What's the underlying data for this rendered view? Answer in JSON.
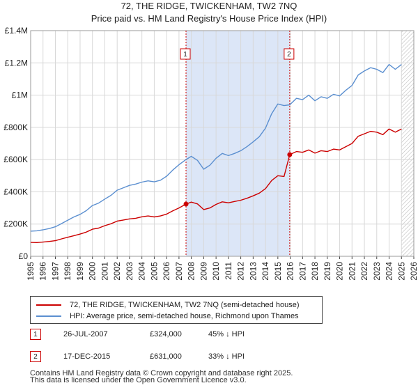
{
  "title_line1": "72, THE RIDGE, TWICKENHAM, TW2 7NQ",
  "title_line2": "Price paid vs. HM Land Registry's House Price Index (HPI)",
  "colors": {
    "price": "#cc0000",
    "hpi": "#5b8fd0",
    "shade": "#dce6f7",
    "grid": "#d8d8d8",
    "marker_border": "#cc0000"
  },
  "chart_data": {
    "type": "line",
    "title": "Price paid vs. HM Land Registry's House Price Index (HPI)",
    "xlim": [
      1995,
      2026
    ],
    "ylim": [
      0,
      1400000
    ],
    "x_ticks": [
      "1995",
      "1996",
      "1997",
      "1998",
      "1999",
      "2000",
      "2001",
      "2002",
      "2003",
      "2004",
      "2005",
      "2006",
      "2007",
      "2008",
      "2009",
      "2010",
      "2011",
      "2012",
      "2013",
      "2014",
      "2015",
      "2016",
      "2017",
      "2018",
      "2019",
      "2020",
      "2021",
      "2022",
      "2023",
      "2024",
      "2025",
      "2026"
    ],
    "y_ticks": [
      {
        "value": 0,
        "label": "£0"
      },
      {
        "value": 200000,
        "label": "£200K"
      },
      {
        "value": 400000,
        "label": "£400K"
      },
      {
        "value": 600000,
        "label": "£600K"
      },
      {
        "value": 800000,
        "label": "£800K"
      },
      {
        "value": 1000000,
        "label": "£1M"
      },
      {
        "value": 1200000,
        "label": "£1.2M"
      },
      {
        "value": 1400000,
        "label": "£1.4M"
      }
    ],
    "shaded_region": [
      2007.57,
      2015.96
    ],
    "future_hatch_from": 2025.0,
    "series": [
      {
        "name": "72, THE RIDGE, TWICKENHAM, TW2 7NQ (semi-detached house)",
        "color": "#cc0000",
        "x": [
          1995.0,
          1995.5,
          1996.0,
          1996.5,
          1997.0,
          1997.5,
          1998.0,
          1998.5,
          1999.0,
          1999.5,
          2000.0,
          2000.5,
          2001.0,
          2001.5,
          2002.0,
          2002.5,
          2003.0,
          2003.5,
          2004.0,
          2004.5,
          2005.0,
          2005.5,
          2006.0,
          2006.5,
          2007.0,
          2007.57,
          2008.0,
          2008.5,
          2009.0,
          2009.5,
          2010.0,
          2010.5,
          2011.0,
          2011.5,
          2012.0,
          2012.5,
          2013.0,
          2013.5,
          2014.0,
          2014.5,
          2015.0,
          2015.5,
          2015.96,
          2016.5,
          2017.0,
          2017.5,
          2018.0,
          2018.5,
          2019.0,
          2019.5,
          2020.0,
          2020.5,
          2021.0,
          2021.5,
          2022.0,
          2022.5,
          2023.0,
          2023.5,
          2024.0,
          2024.5,
          2025.0
        ],
        "values": [
          86000,
          85000,
          88000,
          92000,
          97000,
          108000,
          118000,
          128000,
          138000,
          150000,
          168000,
          175000,
          190000,
          202000,
          218000,
          225000,
          232000,
          236000,
          245000,
          250000,
          244000,
          250000,
          262000,
          282000,
          300000,
          324000,
          336000,
          325000,
          290000,
          300000,
          322000,
          338000,
          332000,
          340000,
          348000,
          360000,
          375000,
          392000,
          420000,
          470000,
          500000,
          495000,
          631000,
          650000,
          645000,
          660000,
          640000,
          655000,
          650000,
          665000,
          660000,
          680000,
          700000,
          745000,
          760000,
          775000,
          770000,
          755000,
          790000,
          770000,
          790000
        ]
      },
      {
        "name": "HPI: Average price, semi-detached house, Richmond upon Thames",
        "color": "#5b8fd0",
        "x": [
          1995.0,
          1995.5,
          1996.0,
          1996.5,
          1997.0,
          1997.5,
          1998.0,
          1998.5,
          1999.0,
          1999.5,
          2000.0,
          2000.5,
          2001.0,
          2001.5,
          2002.0,
          2002.5,
          2003.0,
          2003.5,
          2004.0,
          2004.5,
          2005.0,
          2005.5,
          2006.0,
          2006.5,
          2007.0,
          2007.57,
          2008.0,
          2008.5,
          2009.0,
          2009.5,
          2010.0,
          2010.5,
          2011.0,
          2011.5,
          2012.0,
          2012.5,
          2013.0,
          2013.5,
          2014.0,
          2014.5,
          2015.0,
          2015.5,
          2015.96,
          2016.5,
          2017.0,
          2017.5,
          2018.0,
          2018.5,
          2019.0,
          2019.5,
          2020.0,
          2020.5,
          2021.0,
          2021.5,
          2022.0,
          2022.5,
          2023.0,
          2023.5,
          2024.0,
          2024.5,
          2025.0
        ],
        "values": [
          156000,
          158000,
          164000,
          172000,
          183000,
          203000,
          224000,
          244000,
          260000,
          283000,
          315000,
          330000,
          355000,
          378000,
          410000,
          425000,
          440000,
          448000,
          460000,
          468000,
          462000,
          472000,
          497000,
          535000,
          568000,
          600000,
          620000,
          595000,
          540000,
          565000,
          608000,
          638000,
          625000,
          638000,
          655000,
          680000,
          710000,
          742000,
          795000,
          885000,
          945000,
          935000,
          940000,
          980000,
          972000,
          1000000,
          965000,
          990000,
          980000,
          1005000,
          995000,
          1030000,
          1060000,
          1125000,
          1150000,
          1170000,
          1160000,
          1140000,
          1190000,
          1160000,
          1190000
        ]
      }
    ],
    "annotations": [
      {
        "label": "1",
        "x": 2007.57,
        "y": 324000
      },
      {
        "label": "2",
        "x": 2015.96,
        "y": 631000
      }
    ]
  },
  "legend": {
    "price_label": "72, THE RIDGE, TWICKENHAM, TW2 7NQ (semi-detached house)",
    "hpi_label": "HPI: Average price, semi-detached house, Richmond upon Thames"
  },
  "sales": [
    {
      "num": "1",
      "date": "26-JUL-2007",
      "price": "£324,000",
      "hpi_diff": "45% ↓ HPI"
    },
    {
      "num": "2",
      "date": "17-DEC-2015",
      "price": "£631,000",
      "hpi_diff": "33% ↓ HPI"
    }
  ],
  "footer": {
    "line1": "Contains HM Land Registry data © Crown copyright and database right 2025.",
    "line2": "This data is licensed under the Open Government Licence v3.0."
  }
}
